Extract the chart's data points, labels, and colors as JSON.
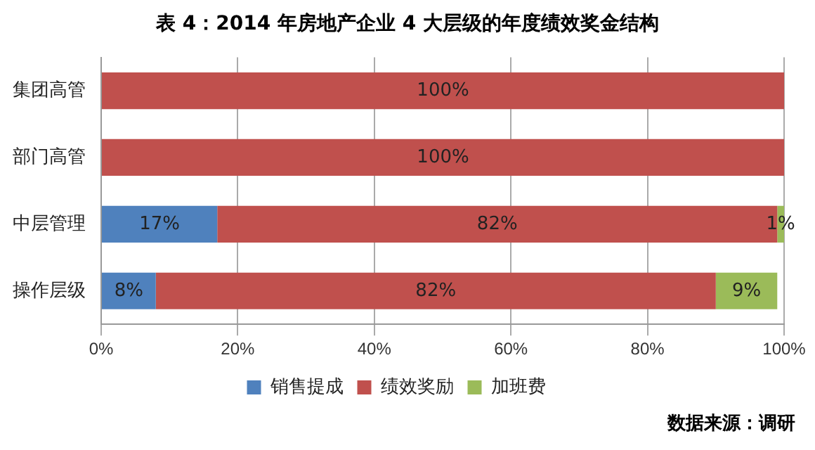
{
  "chart_data": {
    "type": "bar",
    "orientation": "horizontal",
    "stacked": true,
    "title": "表 4：2014 年房地产企业 4 大层级的年度绩效奖金结构",
    "categories": [
      "集团高管",
      "部门高管",
      "中层管理",
      "操作层级"
    ],
    "series": [
      {
        "name": "销售提成",
        "color": "#4f81bd",
        "values": [
          null,
          null,
          17,
          8
        ],
        "value_labels": [
          null,
          null,
          "17%",
          "8%"
        ]
      },
      {
        "name": "绩效奖励",
        "color": "#c0504d",
        "values": [
          100,
          100,
          82,
          82
        ],
        "value_labels": [
          "100%",
          "100%",
          "82%",
          "82%"
        ]
      },
      {
        "name": "加班费",
        "color": "#9bbb59",
        "values": [
          null,
          null,
          1,
          9
        ],
        "value_labels": [
          null,
          null,
          "1%",
          "9%"
        ]
      }
    ],
    "xlim": [
      0,
      100
    ],
    "xticks": [
      {
        "value": 0,
        "label": "0%"
      },
      {
        "value": 20,
        "label": "20%"
      },
      {
        "value": 40,
        "label": "40%"
      },
      {
        "value": 60,
        "label": "60%"
      },
      {
        "value": 80,
        "label": "80%"
      },
      {
        "value": 100,
        "label": "100%"
      }
    ],
    "grid": "x",
    "legend": "bottom",
    "annotations": [
      "数据来源：调研"
    ]
  }
}
